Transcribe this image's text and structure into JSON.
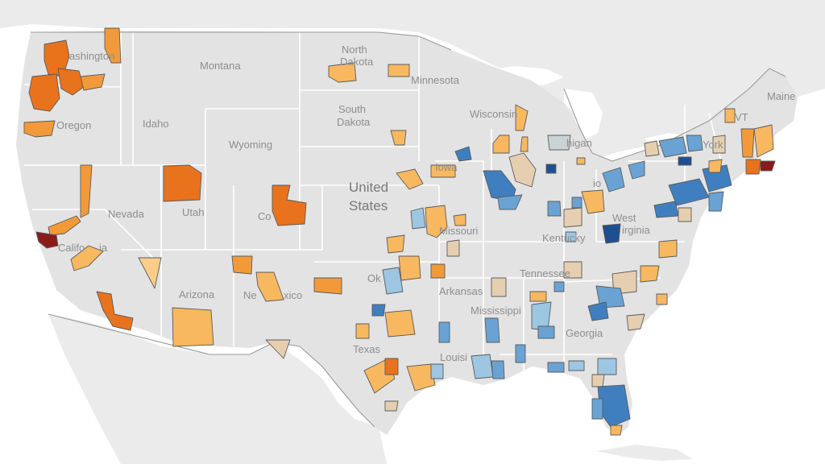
{
  "colors": {
    "background_land": "#e3e3e3",
    "neighbor_land": "#ebebeb",
    "water": "#ffffff",
    "state_border": "#ffffff",
    "country_border": "#9a9a9a",
    "scale": {
      "dark_red": "#8b1a1a",
      "orange_dark": "#e8731c",
      "orange": "#f29a3a",
      "orange_light": "#f7b860",
      "peach": "#fbcd8a",
      "tan": "#e6cfb0",
      "gray_blue": "#c8d3d3",
      "light_blue": "#9dc6e3",
      "blue": "#6aa3d3",
      "mid_blue": "#3f7fbf",
      "dark_blue": "#1e4f91"
    }
  },
  "labels": {
    "country": [
      "United",
      "States"
    ],
    "states": [
      "Washington",
      "Montana",
      "North Dakota",
      "Minnesota",
      "Oregon",
      "Idaho",
      "South Dakota",
      "Wyoming",
      "Wisconsin",
      "Michigan",
      "Maine",
      "VT",
      "New York",
      "Iowa",
      "Nevada",
      "Utah",
      "Colorado",
      "California",
      "Missouri",
      "Kentucky",
      "West Virginia",
      "Ohio",
      "Oklahoma",
      "Arkansas",
      "Tennessee",
      "Arizona",
      "New Mexico",
      "Mississippi",
      "Georgia",
      "Texas",
      "Louisiana"
    ],
    "state_parts": {
      "washington": "ashington",
      "north": "North",
      "dakota_n": "Dakota",
      "south": "South",
      "dakota_s": "Dakota",
      "colorado": "Co",
      "california": "Califo",
      "california_tail": "ia",
      "west": "West",
      "virginia": "irginia",
      "ohio": "io",
      "oklahoma": "Ok",
      "new_mexico_a": "Ne",
      "new_mexico_b": "xico",
      "louisiana": "Louisi",
      "michigan": "higan",
      "new_york": "York"
    }
  }
}
